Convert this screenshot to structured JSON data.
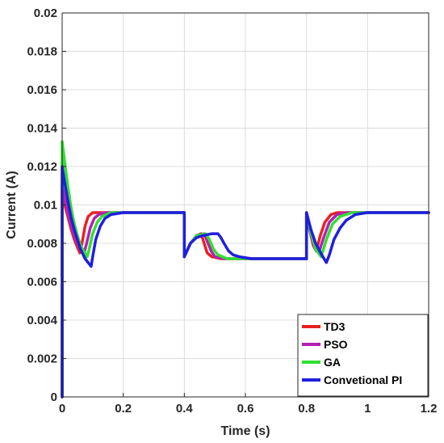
{
  "chart_data": {
    "type": "line",
    "title": "",
    "xlabel": "Time (s)",
    "ylabel": "Current (A)",
    "xlim": [
      0,
      1.2
    ],
    "ylim": [
      0,
      0.02
    ],
    "grid": true,
    "legend_position": "bottom-right",
    "x_ticks": [
      "0",
      "0.2",
      "0.4",
      "0.6",
      "0.8",
      "1",
      "1.2"
    ],
    "y_ticks": [
      "0",
      "0.002",
      "0.004",
      "0.006",
      "0.008",
      "0.01",
      "0.012",
      "0.014",
      "0.016",
      "0.018",
      "0.02"
    ],
    "series": [
      {
        "name": "TD3",
        "color": "#e8211f",
        "points": [
          [
            0,
            0
          ],
          [
            0,
            0.0107
          ],
          [
            0.01,
            0.0099
          ],
          [
            0.02,
            0.0093
          ],
          [
            0.03,
            0.0087
          ],
          [
            0.04,
            0.0082
          ],
          [
            0.05,
            0.0078
          ],
          [
            0.058,
            0.0075
          ],
          [
            0.066,
            0.0081
          ],
          [
            0.075,
            0.0089
          ],
          [
            0.085,
            0.0094
          ],
          [
            0.1,
            0.0096
          ],
          [
            0.4,
            0.0096
          ],
          [
            0.4,
            0.0073
          ],
          [
            0.42,
            0.008
          ],
          [
            0.44,
            0.0084
          ],
          [
            0.455,
            0.0085
          ],
          [
            0.465,
            0.008
          ],
          [
            0.475,
            0.0075
          ],
          [
            0.49,
            0.0073
          ],
          [
            0.52,
            0.0072
          ],
          [
            0.8,
            0.0072
          ],
          [
            0.8,
            0.0096
          ],
          [
            0.81,
            0.0087
          ],
          [
            0.822,
            0.0079
          ],
          [
            0.832,
            0.0076
          ],
          [
            0.845,
            0.0084
          ],
          [
            0.86,
            0.0091
          ],
          [
            0.88,
            0.0095
          ],
          [
            0.9,
            0.0096
          ],
          [
            1.2,
            0.0096
          ]
        ]
      },
      {
        "name": "PSO",
        "color": "#b520b5",
        "points": [
          [
            0,
            0
          ],
          [
            0,
            0.011
          ],
          [
            0.01,
            0.0102
          ],
          [
            0.02,
            0.0095
          ],
          [
            0.03,
            0.0089
          ],
          [
            0.04,
            0.0084
          ],
          [
            0.05,
            0.008
          ],
          [
            0.06,
            0.0077
          ],
          [
            0.072,
            0.0075
          ],
          [
            0.08,
            0.008
          ],
          [
            0.092,
            0.0088
          ],
          [
            0.105,
            0.0093
          ],
          [
            0.12,
            0.0095
          ],
          [
            0.14,
            0.0096
          ],
          [
            0.4,
            0.0096
          ],
          [
            0.4,
            0.0073
          ],
          [
            0.42,
            0.008
          ],
          [
            0.44,
            0.0084
          ],
          [
            0.465,
            0.0085
          ],
          [
            0.475,
            0.0081
          ],
          [
            0.488,
            0.0076
          ],
          [
            0.5,
            0.0073
          ],
          [
            0.53,
            0.0072
          ],
          [
            0.8,
            0.0072
          ],
          [
            0.8,
            0.0096
          ],
          [
            0.812,
            0.0086
          ],
          [
            0.826,
            0.0078
          ],
          [
            0.84,
            0.0075
          ],
          [
            0.856,
            0.0083
          ],
          [
            0.875,
            0.0091
          ],
          [
            0.9,
            0.0095
          ],
          [
            0.93,
            0.0096
          ],
          [
            1.2,
            0.0096
          ]
        ]
      },
      {
        "name": "GA",
        "color": "#30e030",
        "points": [
          [
            0,
            0
          ],
          [
            0,
            0.0133
          ],
          [
            0.01,
            0.012
          ],
          [
            0.02,
            0.0108
          ],
          [
            0.03,
            0.0098
          ],
          [
            0.04,
            0.009
          ],
          [
            0.05,
            0.0084
          ],
          [
            0.06,
            0.0079
          ],
          [
            0.07,
            0.0076
          ],
          [
            0.082,
            0.0073
          ],
          [
            0.09,
            0.0078
          ],
          [
            0.1,
            0.0085
          ],
          [
            0.115,
            0.0091
          ],
          [
            0.13,
            0.0094
          ],
          [
            0.16,
            0.0096
          ],
          [
            0.4,
            0.0096
          ],
          [
            0.4,
            0.0073
          ],
          [
            0.42,
            0.008
          ],
          [
            0.44,
            0.0084
          ],
          [
            0.47,
            0.0085
          ],
          [
            0.482,
            0.0082
          ],
          [
            0.495,
            0.0077
          ],
          [
            0.51,
            0.0074
          ],
          [
            0.54,
            0.0072
          ],
          [
            0.8,
            0.0072
          ],
          [
            0.8,
            0.0096
          ],
          [
            0.815,
            0.0085
          ],
          [
            0.83,
            0.0077
          ],
          [
            0.848,
            0.0073
          ],
          [
            0.865,
            0.0082
          ],
          [
            0.885,
            0.009
          ],
          [
            0.91,
            0.0094
          ],
          [
            0.95,
            0.0096
          ],
          [
            1.2,
            0.0096
          ]
        ]
      },
      {
        "name": "Convetional PI",
        "color": "#1f1fe0",
        "points": [
          [
            0,
            0
          ],
          [
            0,
            0.012
          ],
          [
            0.01,
            0.011
          ],
          [
            0.02,
            0.0101
          ],
          [
            0.03,
            0.0093
          ],
          [
            0.04,
            0.0087
          ],
          [
            0.05,
            0.0082
          ],
          [
            0.06,
            0.0077
          ],
          [
            0.075,
            0.0072
          ],
          [
            0.095,
            0.0068
          ],
          [
            0.1,
            0.0073
          ],
          [
            0.11,
            0.0082
          ],
          [
            0.125,
            0.0089
          ],
          [
            0.14,
            0.0093
          ],
          [
            0.16,
            0.0095
          ],
          [
            0.2,
            0.0096
          ],
          [
            0.4,
            0.0096
          ],
          [
            0.4,
            0.0073
          ],
          [
            0.42,
            0.008
          ],
          [
            0.44,
            0.0083
          ],
          [
            0.46,
            0.0084
          ],
          [
            0.49,
            0.0085
          ],
          [
            0.51,
            0.0085
          ],
          [
            0.52,
            0.0083
          ],
          [
            0.53,
            0.008
          ],
          [
            0.545,
            0.0076
          ],
          [
            0.56,
            0.0074
          ],
          [
            0.58,
            0.0073
          ],
          [
            0.62,
            0.0072
          ],
          [
            0.8,
            0.0072
          ],
          [
            0.8,
            0.0096
          ],
          [
            0.815,
            0.0087
          ],
          [
            0.83,
            0.008
          ],
          [
            0.85,
            0.0074
          ],
          [
            0.865,
            0.007
          ],
          [
            0.875,
            0.0074
          ],
          [
            0.89,
            0.0082
          ],
          [
            0.91,
            0.0088
          ],
          [
            0.93,
            0.0092
          ],
          [
            0.96,
            0.0095
          ],
          [
            1.0,
            0.0096
          ],
          [
            1.2,
            0.0096
          ]
        ]
      }
    ]
  }
}
